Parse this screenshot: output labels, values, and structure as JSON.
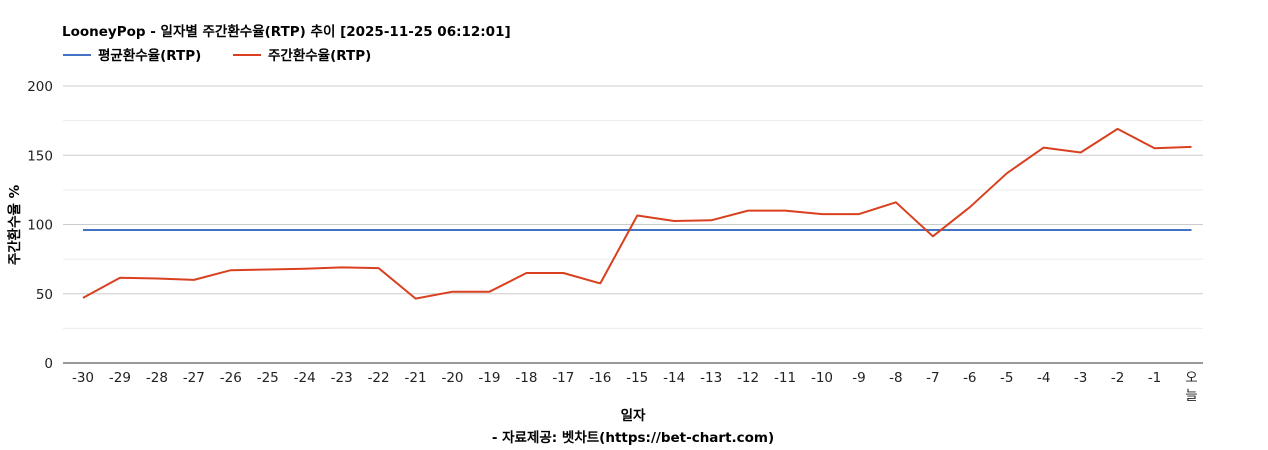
{
  "chart_data": {
    "type": "line",
    "title": "LooneyPop - 일자별 주간환수율(RTP) 추이 [2025-11-25 06:12:01]",
    "xlabel": "일자",
    "ylabel": "주간환수율 %",
    "source": "- 자료제공: 벳차트(https://bet-chart.com)",
    "categories": [
      "-30",
      "-29",
      "-28",
      "-27",
      "-26",
      "-25",
      "-24",
      "-23",
      "-22",
      "-21",
      "-20",
      "-19",
      "-18",
      "-17",
      "-16",
      "-15",
      "-14",
      "-13",
      "-12",
      "-11",
      "-10",
      "-9",
      "-8",
      "-7",
      "-6",
      "-5",
      "-4",
      "-3",
      "-2",
      "-1",
      "오늘"
    ],
    "ylim": [
      0,
      200
    ],
    "yticks": [
      "0",
      "50",
      "100",
      "150",
      "200"
    ],
    "grid": true,
    "legend_position": "top-left",
    "series": [
      {
        "name": "평균환수율(RTP)",
        "color": "#4472C4",
        "values": [
          96,
          96,
          96,
          96,
          96,
          96,
          96,
          96,
          96,
          96,
          96,
          96,
          96,
          96,
          96,
          96,
          96,
          96,
          96,
          96,
          96,
          96,
          96,
          96,
          96,
          96,
          96,
          96,
          96,
          96,
          96
        ]
      },
      {
        "name": "주간환수율(RTP)",
        "color": "#D9401F",
        "values": [
          47,
          61.5,
          61,
          60,
          67,
          67.5,
          68,
          69,
          68.5,
          46.5,
          51.5,
          51.5,
          65,
          65,
          57.5,
          106.5,
          102.5,
          103,
          110,
          110,
          107.5,
          107.5,
          116,
          91.5,
          112.5,
          137,
          155.5,
          152,
          169,
          155,
          156
        ]
      }
    ]
  }
}
